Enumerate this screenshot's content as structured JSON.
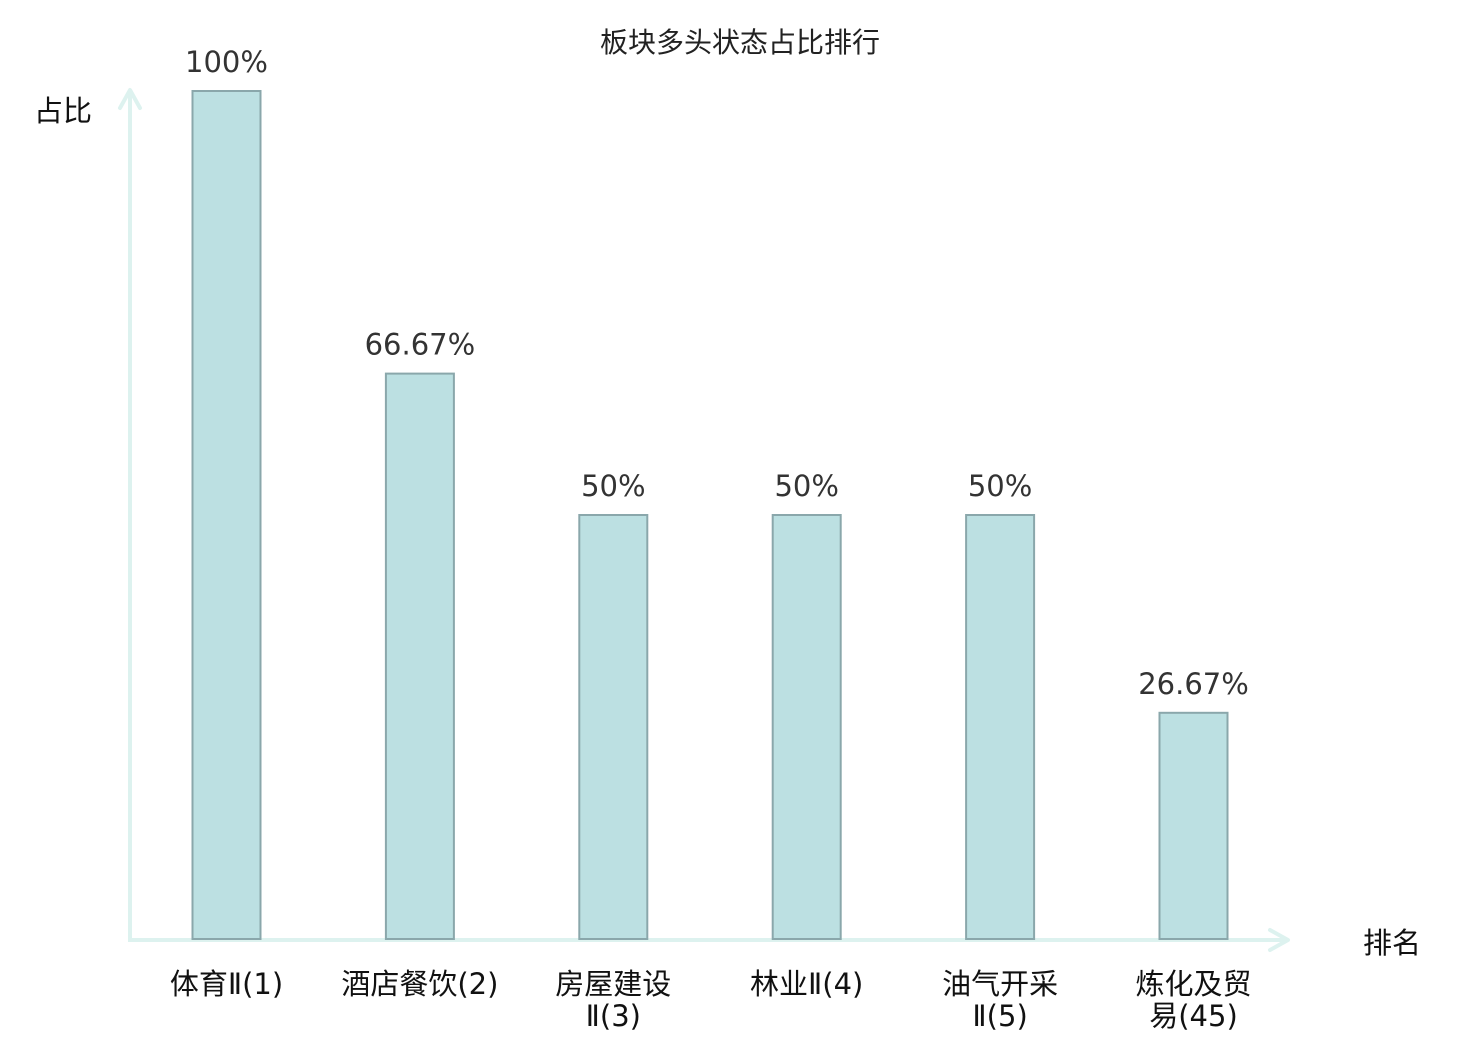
{
  "chart_data": {
    "type": "bar",
    "title": "板块多头状态占比排行",
    "ylabel": "占比",
    "xlabel": "排名",
    "ylim": [
      0,
      100
    ],
    "grid": false,
    "categories": [
      [
        "体育Ⅱ(1)"
      ],
      [
        "酒店餐饮(2)"
      ],
      [
        "房屋建设",
        "Ⅱ(3)"
      ],
      [
        "林业Ⅱ(4)"
      ],
      [
        "油气开采",
        "Ⅱ(5)"
      ],
      [
        "炼化及贸",
        "易(45)"
      ]
    ],
    "values": [
      100,
      66.67,
      50,
      50,
      50,
      26.67
    ],
    "value_labels": [
      "100%",
      "66.67%",
      "50%",
      "50%",
      "50%",
      "26.67%"
    ],
    "highlight_index": 5
  },
  "colors": {
    "bar_fill": "#bce0e2",
    "bar_stroke": "#8aa7ab",
    "axis": "#ddf2ef",
    "highlight_text": "#e01010",
    "text": "#111111"
  }
}
